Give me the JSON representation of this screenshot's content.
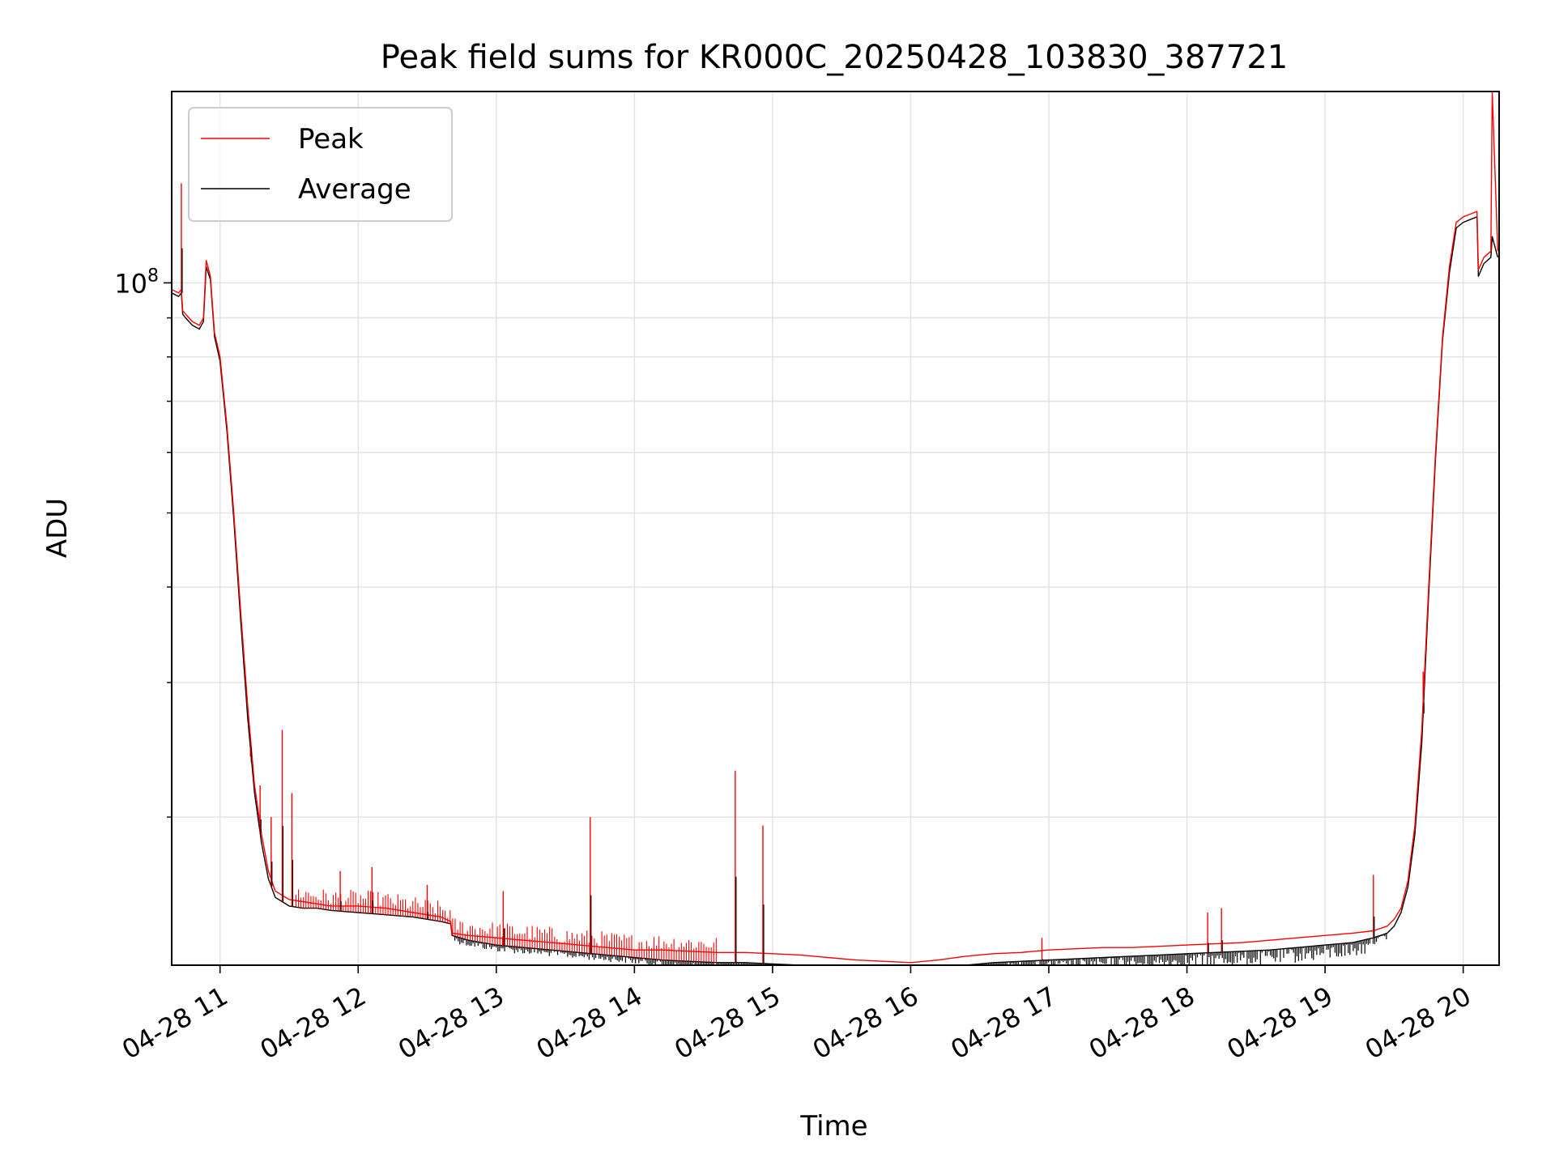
{
  "chart_data": {
    "type": "line",
    "title": "Peak field sums for KR000C_20250428_103830_387721",
    "xlabel": "Time",
    "ylabel": "ADU",
    "yscale": "log",
    "grid": true,
    "legend_position": "top-left",
    "x_unit": "hours since 04-28 00:00",
    "xlim": [
      10.65,
      20.26
    ],
    "ylim": [
      12800000.0,
      178000000.0
    ],
    "x_ticks": [
      {
        "value": 11,
        "label": "04-28 11"
      },
      {
        "value": 12,
        "label": "04-28 12"
      },
      {
        "value": 13,
        "label": "04-28 13"
      },
      {
        "value": 14,
        "label": "04-28 14"
      },
      {
        "value": 15,
        "label": "04-28 15"
      },
      {
        "value": 16,
        "label": "04-28 16"
      },
      {
        "value": 17,
        "label": "04-28 17"
      },
      {
        "value": 18,
        "label": "04-28 18"
      },
      {
        "value": 19,
        "label": "04-28 19"
      },
      {
        "value": 20,
        "label": "04-28 20"
      }
    ],
    "y_major_ticks": [
      {
        "value": 100000000,
        "label": "10",
        "exponent": "8"
      }
    ],
    "y_minor_ticks": [
      20000000,
      30000000,
      40000000,
      50000000,
      60000000,
      70000000,
      80000000,
      90000000
    ],
    "series": [
      {
        "name": "Peak",
        "color": "#ff0000",
        "x": [
          10.65,
          10.7,
          10.72,
          10.73,
          10.75,
          10.8,
          10.85,
          10.88,
          10.9,
          10.93,
          10.96,
          11.0,
          11.05,
          11.1,
          11.15,
          11.2,
          11.25,
          11.3,
          11.35,
          11.4,
          11.45,
          11.5,
          11.6,
          11.7,
          11.8,
          12.0,
          12.2,
          12.4,
          12.6,
          12.67,
          12.68,
          12.8,
          13.0,
          13.2,
          13.4,
          13.6,
          13.8,
          14.0,
          14.2,
          14.4,
          14.6,
          14.8,
          15.0,
          15.2,
          15.4,
          15.6,
          15.8,
          16.0,
          16.2,
          16.4,
          16.6,
          16.8,
          17.0,
          17.2,
          17.4,
          17.6,
          17.8,
          18.0,
          18.2,
          18.4,
          18.6,
          18.8,
          19.0,
          19.2,
          19.35,
          19.45,
          19.5,
          19.55,
          19.6,
          19.65,
          19.7,
          19.75,
          19.8,
          19.85,
          19.9,
          19.95,
          20.0,
          20.05,
          20.1,
          20.11,
          20.15,
          20.2,
          20.21,
          20.25
        ],
        "y": [
          98000000,
          97000000,
          98000000,
          92000000,
          91000000,
          89000000,
          88000000,
          90000000,
          107000000,
          102000000,
          86000000,
          80000000,
          65000000,
          50000000,
          37000000,
          28000000,
          22000000,
          19000000,
          17000000,
          16000000,
          15800000,
          15600000,
          15500000,
          15400000,
          15300000,
          15300000,
          15200000,
          15000000,
          14800000,
          14600000,
          14100000,
          14000000,
          13900000,
          13800000,
          13700000,
          13600000,
          13500000,
          13400000,
          13400000,
          13350000,
          13300000,
          13300000,
          13250000,
          13200000,
          13100000,
          13000000,
          12950000,
          12900000,
          13000000,
          13150000,
          13250000,
          13300000,
          13400000,
          13450000,
          13500000,
          13500000,
          13550000,
          13600000,
          13650000,
          13700000,
          13800000,
          13900000,
          14000000,
          14100000,
          14200000,
          14400000,
          14700000,
          15200000,
          16500000,
          19500000,
          26000000,
          40000000,
          60000000,
          85000000,
          105000000,
          120000000,
          122000000,
          123000000,
          124000000,
          104000000,
          108000000,
          110000000,
          178000000,
          110000000
        ],
        "spikes": [
          {
            "x": 10.72,
            "y": 135000000
          },
          {
            "x": 11.22,
            "y": 24000000
          },
          {
            "x": 11.29,
            "y": 22000000
          },
          {
            "x": 11.37,
            "y": 20000000
          },
          {
            "x": 11.45,
            "y": 26000000
          },
          {
            "x": 11.52,
            "y": 21500000
          },
          {
            "x": 11.87,
            "y": 17000000
          },
          {
            "x": 12.1,
            "y": 17200000
          },
          {
            "x": 12.5,
            "y": 16300000
          },
          {
            "x": 13.05,
            "y": 16000000
          },
          {
            "x": 13.68,
            "y": 20000000
          },
          {
            "x": 14.73,
            "y": 23000000
          },
          {
            "x": 14.93,
            "y": 19500000
          },
          {
            "x": 16.95,
            "y": 13900000
          },
          {
            "x": 18.15,
            "y": 15000000
          },
          {
            "x": 18.25,
            "y": 15200000
          },
          {
            "x": 19.35,
            "y": 16800000
          },
          {
            "x": 19.71,
            "y": 31000000
          }
        ]
      },
      {
        "name": "Average",
        "color": "#000000",
        "x": [
          10.65,
          10.7,
          10.72,
          10.73,
          10.75,
          10.8,
          10.85,
          10.88,
          10.9,
          10.93,
          10.96,
          11.0,
          11.05,
          11.1,
          11.15,
          11.2,
          11.25,
          11.3,
          11.35,
          11.4,
          11.45,
          11.5,
          11.6,
          11.7,
          11.8,
          12.0,
          12.2,
          12.4,
          12.6,
          12.67,
          12.68,
          12.8,
          13.0,
          13.2,
          13.4,
          13.6,
          13.8,
          14.0,
          14.2,
          14.4,
          14.6,
          14.8,
          15.0,
          15.2,
          15.4,
          15.6,
          15.8,
          16.0,
          16.2,
          16.4,
          16.6,
          16.8,
          17.0,
          17.2,
          17.4,
          17.6,
          17.8,
          18.0,
          18.2,
          18.4,
          18.6,
          18.8,
          19.0,
          19.2,
          19.35,
          19.45,
          19.5,
          19.55,
          19.6,
          19.65,
          19.7,
          19.75,
          19.8,
          19.85,
          19.9,
          19.95,
          20.0,
          20.05,
          20.1,
          20.11,
          20.15,
          20.2,
          20.21,
          20.25
        ],
        "y": [
          97000000,
          96000000,
          97000000,
          91000000,
          90000000,
          88000000,
          87000000,
          89000000,
          105000000,
          101000000,
          85000000,
          79000000,
          64000000,
          49000000,
          36000000,
          27000000,
          21500000,
          18500000,
          16600000,
          15700000,
          15500000,
          15300000,
          15200000,
          15200000,
          15100000,
          15000000,
          14900000,
          14800000,
          14600000,
          14500000,
          14000000,
          13800000,
          13600000,
          13500000,
          13400000,
          13300000,
          13200000,
          13100000,
          13000000,
          12950000,
          12900000,
          12900000,
          12850000,
          12800000,
          12750000,
          12700000,
          12650000,
          12620000,
          12700000,
          12800000,
          12900000,
          12950000,
          13000000,
          13050000,
          13100000,
          13150000,
          13200000,
          13250000,
          13300000,
          13350000,
          13400000,
          13500000,
          13600000,
          13700000,
          13900000,
          14100000,
          14400000,
          15000000,
          16200000,
          19000000,
          25000000,
          39000000,
          59000000,
          84000000,
          103000000,
          118000000,
          120000000,
          121000000,
          122000000,
          102000000,
          106000000,
          108000000,
          115000000,
          108000000
        ]
      }
    ]
  }
}
